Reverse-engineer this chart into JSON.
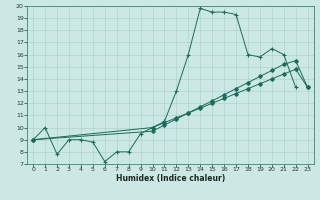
{
  "xlabel": "Humidex (Indice chaleur)",
  "background_color": "#cce8e4",
  "grid_color": "#aaceca",
  "line_color": "#1a6b5a",
  "xlim": [
    -0.5,
    23.5
  ],
  "ylim": [
    7,
    20
  ],
  "xticks": [
    0,
    1,
    2,
    3,
    4,
    5,
    6,
    7,
    8,
    9,
    10,
    11,
    12,
    13,
    14,
    15,
    16,
    17,
    18,
    19,
    20,
    21,
    22,
    23
  ],
  "yticks": [
    7,
    8,
    9,
    10,
    11,
    12,
    13,
    14,
    15,
    16,
    17,
    18,
    19,
    20
  ],
  "line1_x": [
    0,
    1,
    2,
    3,
    4,
    5,
    6,
    7,
    8,
    9,
    10,
    11,
    12,
    13,
    14,
    15,
    16,
    17,
    18,
    19,
    20,
    21,
    22
  ],
  "line1_y": [
    9.0,
    10.0,
    7.8,
    9.0,
    9.0,
    8.8,
    7.2,
    8.0,
    8.0,
    9.5,
    10.0,
    10.5,
    13.0,
    16.0,
    19.8,
    19.5,
    19.5,
    19.3,
    16.0,
    15.8,
    16.5,
    16.0,
    13.3
  ],
  "line2_x": [
    0,
    10,
    11,
    12,
    13,
    14,
    15,
    16,
    17,
    18,
    19,
    20,
    21,
    22,
    23
  ],
  "line2_y": [
    9.0,
    10.0,
    10.4,
    10.8,
    11.2,
    11.6,
    12.0,
    12.4,
    12.8,
    13.2,
    13.6,
    14.0,
    14.4,
    14.8,
    13.3
  ],
  "line3_x": [
    0,
    10,
    11,
    12,
    13,
    14,
    15,
    16,
    17,
    18,
    19,
    20,
    21,
    22,
    23
  ],
  "line3_y": [
    9.0,
    9.7,
    10.2,
    10.7,
    11.2,
    11.7,
    12.2,
    12.7,
    13.2,
    13.7,
    14.2,
    14.7,
    15.2,
    15.5,
    13.3
  ]
}
